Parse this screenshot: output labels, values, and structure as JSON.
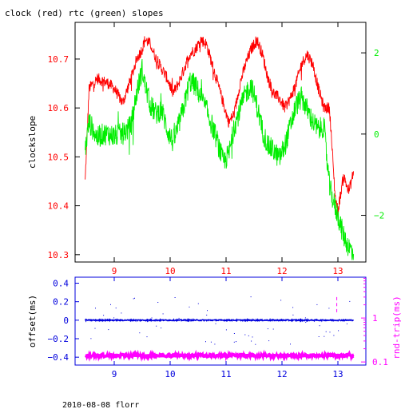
{
  "title": "clock (red) rtc (green) slopes",
  "footer": "2010-08-08 florr",
  "colors": {
    "clock": "#ff0000",
    "rtc": "#00ee00",
    "offset": "#0000dd",
    "rndtrip": "#ff00ff",
    "frame": "#000000"
  },
  "chart_data": [
    {
      "type": "line",
      "title": "clock (red) rtc (green) slopes",
      "xlabel": "",
      "ylabel": "clockslope",
      "y2label": "",
      "xlim": [
        8.3,
        13.5
      ],
      "ylim": [
        10.285,
        10.775
      ],
      "y2lim": [
        -3.15,
        2.75
      ],
      "xticks": [
        9,
        10,
        11,
        12,
        13
      ],
      "yticks": [
        10.3,
        10.4,
        10.5,
        10.6,
        10.7
      ],
      "y2ticks": [
        -2,
        0,
        2
      ],
      "series": [
        {
          "name": "clock",
          "axis": "left",
          "x": [
            8.48,
            8.55,
            8.7,
            8.9,
            9.0,
            9.15,
            9.3,
            9.4,
            9.5,
            9.55,
            9.65,
            9.75,
            9.85,
            9.95,
            10.05,
            10.15,
            10.25,
            10.35,
            10.45,
            10.55,
            10.65,
            10.75,
            10.85,
            10.95,
            11.05,
            11.15,
            11.25,
            11.35,
            11.45,
            11.55,
            11.65,
            11.75,
            11.85,
            11.95,
            12.05,
            12.15,
            12.25,
            12.35,
            12.45,
            12.55,
            12.65,
            12.75,
            12.85,
            12.95,
            13.0,
            13.1,
            13.2,
            13.28
          ],
          "y": [
            10.45,
            10.64,
            10.66,
            10.65,
            10.64,
            10.61,
            10.66,
            10.7,
            10.72,
            10.74,
            10.73,
            10.7,
            10.68,
            10.66,
            10.63,
            10.65,
            10.68,
            10.71,
            10.72,
            10.74,
            10.73,
            10.69,
            10.65,
            10.61,
            10.57,
            10.59,
            10.65,
            10.69,
            10.72,
            10.74,
            10.71,
            10.66,
            10.63,
            10.62,
            10.6,
            10.62,
            10.65,
            10.69,
            10.71,
            10.69,
            10.64,
            10.6,
            10.6,
            10.42,
            10.39,
            10.46,
            10.43,
            10.47
          ]
        },
        {
          "name": "rtc",
          "axis": "right",
          "x": [
            8.48,
            8.55,
            8.7,
            8.8,
            8.9,
            9.0,
            9.15,
            9.3,
            9.4,
            9.5,
            9.55,
            9.65,
            9.75,
            9.85,
            9.95,
            10.05,
            10.15,
            10.25,
            10.35,
            10.45,
            10.55,
            10.65,
            10.75,
            10.85,
            10.95,
            11.05,
            11.15,
            11.25,
            11.35,
            11.45,
            11.55,
            11.65,
            11.75,
            11.85,
            11.95,
            12.05,
            12.15,
            12.25,
            12.35,
            12.45,
            12.55,
            12.65,
            12.75,
            12.85,
            12.95,
            13.0,
            13.1,
            13.2,
            13.28
          ],
          "y": [
            -0.4,
            0.3,
            -0.1,
            0.0,
            0.0,
            -0.05,
            0.0,
            0.2,
            1.0,
            1.6,
            1.2,
            0.7,
            0.5,
            0.6,
            0.1,
            -0.2,
            0.2,
            0.7,
            1.3,
            1.2,
            0.9,
            0.6,
            0.2,
            -0.2,
            -0.7,
            -0.5,
            0.2,
            0.6,
            1.0,
            1.2,
            0.7,
            0.1,
            -0.3,
            -0.4,
            -0.6,
            -0.3,
            0.2,
            0.7,
            0.9,
            0.6,
            0.3,
            0.1,
            0.2,
            -1.3,
            -1.8,
            -2.0,
            -2.5,
            -2.8,
            -2.9
          ]
        }
      ]
    },
    {
      "type": "scatter",
      "xlabel": "",
      "ylabel": "offset(ms)",
      "y2label": "rnd-trip(ms)",
      "xlim": [
        8.3,
        13.5
      ],
      "ylim": [
        -0.485,
        0.465
      ],
      "y2log": true,
      "y2lim": [
        0.085,
        8.5
      ],
      "xticks": [
        9,
        10,
        11,
        12,
        13
      ],
      "yticks": [
        -0.4,
        -0.2,
        0,
        0.2,
        0.4
      ],
      "y2ticks": [
        0.1,
        1
      ],
      "series": [
        {
          "name": "offset",
          "axis": "left",
          "x": [
            8.48,
            13.28
          ],
          "y": [
            0.0,
            0.0
          ]
        },
        {
          "name": "rnd-trip",
          "axis": "right",
          "x": [
            8.48,
            13.28
          ],
          "y": [
            0.14,
            0.14
          ],
          "outliers": [
            [
              12.98,
              3.0
            ],
            [
              12.98,
              2.2
            ],
            [
              12.98,
              1.6
            ]
          ]
        }
      ]
    }
  ]
}
